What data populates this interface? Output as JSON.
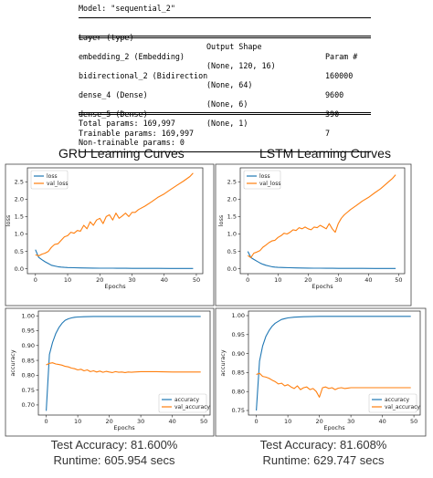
{
  "model_summary": {
    "model_line": "Model: \"sequential_2\"",
    "headers": [
      "Layer (type)",
      "Output Shape",
      "Param #"
    ],
    "rows": [
      [
        "embedding_2 (Embedding)",
        "(None, 120, 16)",
        "160000"
      ],
      [
        "bidirectional_2 (Bidirection",
        "(None, 64)",
        "9600"
      ],
      [
        "dense_4 (Dense)",
        "(None, 6)",
        "390"
      ],
      [
        "dense_5 (Dense)",
        "(None, 1)",
        "7"
      ]
    ],
    "totals": [
      "Total params: 169,997",
      "Trainable params: 169,997",
      "Non-trainable params: 0"
    ]
  },
  "titles": {
    "gru": "GRU Learning Curves",
    "lstm": "LSTM Learning Curves"
  },
  "footers": {
    "gru_accuracy": "Test Accuracy: 81.600%",
    "gru_runtime": "Runtime: 605.954 secs",
    "lstm_accuracy": "Test Accuracy: 81.608%",
    "lstm_runtime": "Runtime: 629.747 secs"
  },
  "colors": {
    "train": "#1f77b4",
    "val": "#ff7f0e"
  },
  "chart_data": [
    {
      "type": "line",
      "title": "",
      "xlabel": "Epochs",
      "ylabel": "loss",
      "xlim": [
        -2.5,
        52
      ],
      "ylim": [
        -0.14,
        2.9
      ],
      "xticks": [
        0,
        10,
        20,
        30,
        40,
        50
      ],
      "yticks": [
        0.0,
        0.5,
        1.0,
        1.5,
        2.0,
        2.5
      ],
      "legend": "top-left",
      "series": [
        {
          "name": "loss",
          "x": [
            0,
            1,
            2,
            3,
            4,
            5,
            6,
            7,
            8,
            9,
            10,
            12,
            14,
            16,
            18,
            20,
            22,
            24,
            26,
            28,
            30,
            34,
            38,
            42,
            46,
            49
          ],
          "y": [
            0.55,
            0.33,
            0.26,
            0.2,
            0.15,
            0.1,
            0.08,
            0.06,
            0.05,
            0.04,
            0.035,
            0.03,
            0.026,
            0.022,
            0.02,
            0.018,
            0.017,
            0.016,
            0.015,
            0.014,
            0.013,
            0.012,
            0.011,
            0.01,
            0.01,
            0.01
          ]
        },
        {
          "name": "val_loss",
          "x": [
            0,
            1,
            2,
            3,
            4,
            5,
            6,
            7,
            8,
            9,
            10,
            11,
            12,
            13,
            14,
            15,
            16,
            17,
            18,
            19,
            20,
            21,
            22,
            23,
            24,
            25,
            26,
            27,
            28,
            29,
            30,
            31,
            32,
            34,
            36,
            38,
            40,
            42,
            44,
            46,
            48,
            49
          ],
          "y": [
            0.4,
            0.37,
            0.42,
            0.45,
            0.5,
            0.62,
            0.7,
            0.72,
            0.82,
            0.92,
            0.95,
            1.05,
            1.02,
            1.1,
            1.08,
            1.25,
            1.15,
            1.35,
            1.25,
            1.4,
            1.45,
            1.3,
            1.5,
            1.55,
            1.4,
            1.6,
            1.45,
            1.52,
            1.6,
            1.5,
            1.62,
            1.62,
            1.7,
            1.8,
            1.92,
            2.05,
            2.15,
            2.28,
            2.4,
            2.52,
            2.65,
            2.75
          ]
        }
      ]
    },
    {
      "type": "line",
      "title": "",
      "xlabel": "Epochs",
      "ylabel": "loss",
      "xlim": [
        -2.5,
        52
      ],
      "ylim": [
        -0.14,
        2.9
      ],
      "xticks": [
        0,
        10,
        20,
        30,
        40,
        50
      ],
      "yticks": [
        0.0,
        0.5,
        1.0,
        1.5,
        2.0,
        2.5
      ],
      "legend": "top-left",
      "series": [
        {
          "name": "loss",
          "x": [
            0,
            1,
            2,
            3,
            4,
            5,
            6,
            7,
            8,
            9,
            10,
            12,
            14,
            16,
            18,
            20,
            22,
            24,
            26,
            28,
            30,
            34,
            38,
            42,
            46,
            49
          ],
          "y": [
            0.5,
            0.32,
            0.27,
            0.22,
            0.17,
            0.13,
            0.1,
            0.08,
            0.06,
            0.05,
            0.04,
            0.035,
            0.03,
            0.026,
            0.022,
            0.02,
            0.018,
            0.016,
            0.015,
            0.014,
            0.013,
            0.012,
            0.011,
            0.01,
            0.01,
            0.01
          ]
        },
        {
          "name": "val_loss",
          "x": [
            0,
            1,
            2,
            3,
            4,
            5,
            6,
            7,
            8,
            9,
            10,
            11,
            12,
            13,
            14,
            15,
            16,
            17,
            18,
            19,
            20,
            21,
            22,
            23,
            24,
            25,
            26,
            27,
            28,
            29,
            30,
            31,
            32,
            34,
            36,
            38,
            40,
            42,
            44,
            46,
            48,
            49
          ],
          "y": [
            0.38,
            0.32,
            0.45,
            0.48,
            0.52,
            0.62,
            0.68,
            0.75,
            0.8,
            0.82,
            0.9,
            0.95,
            1.02,
            1.0,
            1.05,
            1.12,
            1.1,
            1.18,
            1.15,
            1.2,
            1.15,
            1.12,
            1.2,
            1.18,
            1.25,
            1.2,
            1.15,
            1.3,
            1.15,
            1.05,
            1.3,
            1.45,
            1.55,
            1.7,
            1.82,
            1.95,
            2.05,
            2.18,
            2.3,
            2.45,
            2.6,
            2.7
          ]
        }
      ]
    },
    {
      "type": "line",
      "title": "",
      "xlabel": "Epochs",
      "ylabel": "accuracy",
      "xlim": [
        -2.5,
        52
      ],
      "ylim": [
        0.666,
        1.016
      ],
      "xticks": [
        0,
        10,
        20,
        30,
        40,
        50
      ],
      "yticks": [
        0.7,
        0.75,
        0.8,
        0.85,
        0.9,
        0.95,
        1.0
      ],
      "legend": "bottom-right",
      "series": [
        {
          "name": "accuracy",
          "x": [
            0,
            1,
            2,
            3,
            4,
            5,
            6,
            7,
            8,
            9,
            10,
            12,
            15,
            20,
            25,
            30,
            35,
            40,
            45,
            49
          ],
          "y": [
            0.68,
            0.87,
            0.91,
            0.94,
            0.96,
            0.975,
            0.985,
            0.99,
            0.993,
            0.995,
            0.996,
            0.997,
            0.998,
            0.998,
            0.998,
            0.998,
            0.998,
            0.998,
            0.998,
            0.998
          ]
        },
        {
          "name": "val_accuracy",
          "x": [
            0,
            1,
            2,
            3,
            4,
            5,
            6,
            7,
            8,
            9,
            10,
            11,
            12,
            13,
            14,
            15,
            16,
            17,
            18,
            19,
            20,
            21,
            22,
            23,
            24,
            25,
            26,
            27,
            28,
            30,
            35,
            40,
            45,
            49
          ],
          "y": [
            0.835,
            0.84,
            0.842,
            0.838,
            0.836,
            0.834,
            0.83,
            0.828,
            0.824,
            0.822,
            0.818,
            0.82,
            0.815,
            0.818,
            0.812,
            0.815,
            0.811,
            0.814,
            0.81,
            0.813,
            0.811,
            0.809,
            0.812,
            0.81,
            0.811,
            0.809,
            0.811,
            0.81,
            0.811,
            0.812,
            0.812,
            0.811,
            0.811,
            0.811
          ]
        }
      ]
    },
    {
      "type": "line",
      "title": "",
      "xlabel": "Epochs",
      "ylabel": "accuracy",
      "xlim": [
        -2.5,
        52
      ],
      "ylim": [
        0.738,
        1.012
      ],
      "xticks": [
        0,
        10,
        20,
        30,
        40,
        50
      ],
      "yticks": [
        0.75,
        0.8,
        0.85,
        0.9,
        0.95,
        1.0
      ],
      "legend": "bottom-right",
      "series": [
        {
          "name": "accuracy",
          "x": [
            0,
            1,
            2,
            3,
            4,
            5,
            6,
            7,
            8,
            9,
            10,
            12,
            15,
            20,
            25,
            30,
            35,
            40,
            45,
            49
          ],
          "y": [
            0.75,
            0.88,
            0.92,
            0.945,
            0.96,
            0.972,
            0.98,
            0.985,
            0.99,
            0.992,
            0.994,
            0.996,
            0.997,
            0.998,
            0.998,
            0.998,
            0.998,
            0.998,
            0.998,
            0.998
          ]
        },
        {
          "name": "val_accuracy",
          "x": [
            0,
            1,
            2,
            3,
            4,
            5,
            6,
            7,
            8,
            9,
            10,
            11,
            12,
            13,
            14,
            15,
            16,
            17,
            18,
            19,
            20,
            21,
            22,
            23,
            24,
            25,
            26,
            27,
            28,
            30,
            35,
            40,
            45,
            49
          ],
          "y": [
            0.845,
            0.848,
            0.84,
            0.838,
            0.835,
            0.83,
            0.826,
            0.82,
            0.822,
            0.815,
            0.818,
            0.812,
            0.808,
            0.815,
            0.805,
            0.81,
            0.812,
            0.805,
            0.808,
            0.8,
            0.785,
            0.81,
            0.812,
            0.808,
            0.81,
            0.805,
            0.809,
            0.81,
            0.808,
            0.81,
            0.81,
            0.81,
            0.81,
            0.81
          ]
        }
      ]
    }
  ]
}
